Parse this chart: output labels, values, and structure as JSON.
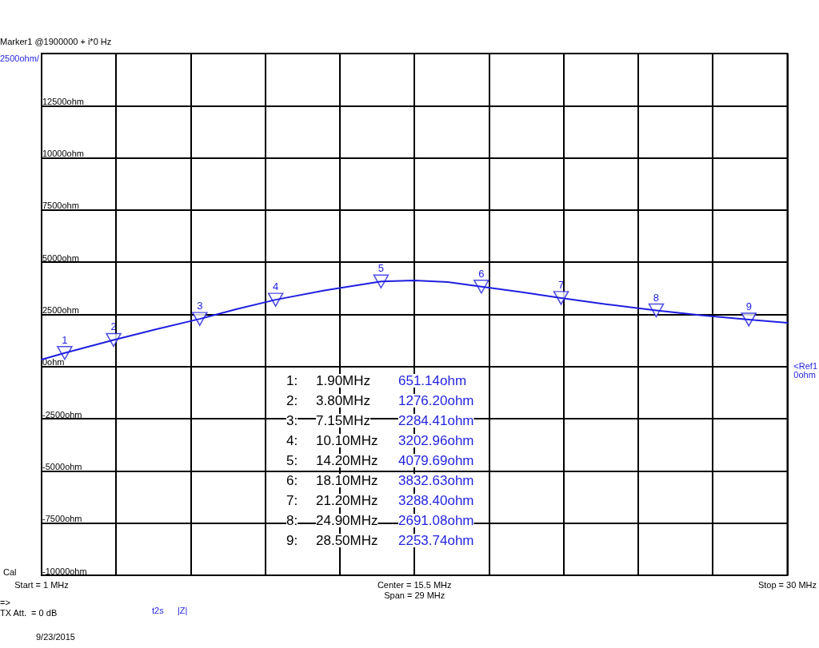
{
  "chart_data": {
    "type": "line",
    "x": [
      1,
      1.9,
      3.8,
      5.5,
      7.15,
      8.6,
      10.1,
      12,
      14.2,
      15.5,
      16.8,
      18.1,
      19.7,
      21.2,
      23,
      24.9,
      26.7,
      28.5,
      30
    ],
    "series": [
      {
        "marker": "none",
        "color": "#1f1fe0",
        "values": [
          340,
          651,
          1276,
          1800,
          2284,
          2760,
          3203,
          3650,
          4080,
          4130,
          4050,
          3833,
          3560,
          3288,
          2980,
          2691,
          2450,
          2254,
          2100
        ]
      },
      {
        "type": "scatter",
        "marker": "triangle",
        "color": "#1f1fe0",
        "x": [
          1.9,
          3.8,
          7.15,
          10.1,
          14.2,
          18.1,
          21.2,
          24.9,
          28.5
        ],
        "values": [
          651.14,
          1276.2,
          2284.41,
          3202.96,
          4079.69,
          3832.63,
          3288.4,
          2691.08,
          2253.74
        ]
      }
    ],
    "line_style": "solid",
    "grid": true,
    "xlim": [
      1,
      30
    ],
    "xticks": [
      {
        "value": 1,
        "label": "Start = 1 MHz"
      },
      {
        "value": 3.9,
        "label": null
      },
      {
        "value": 6.8,
        "label": null
      },
      {
        "value": 9.7,
        "label": null
      },
      {
        "value": 12.6,
        "label": null
      },
      {
        "value": 15.5,
        "label": "Center = 15.5 MHz\nSpan = 29 MHz"
      },
      {
        "value": 18.4,
        "label": null
      },
      {
        "value": 21.3,
        "label": null
      },
      {
        "value": 24.2,
        "label": null
      },
      {
        "value": 27.1,
        "label": null
      },
      {
        "value": 30,
        "label": "Stop = 30 MHz"
      }
    ],
    "ylim": [
      -10000,
      15000
    ],
    "yticks": [
      {
        "value": -10000,
        "label": "-10000ohm"
      },
      {
        "value": -7500,
        "label": "-7500ohm"
      },
      {
        "value": -5000,
        "label": "-5000ohm"
      },
      {
        "value": -2500,
        "label": "-2500ohm"
      },
      {
        "value": 0,
        "label": "0ohm"
      },
      {
        "value": 2500,
        "label": "2500ohm"
      },
      {
        "value": 5000,
        "label": "5000ohm"
      },
      {
        "value": 7500,
        "label": "7500ohm"
      },
      {
        "value": 10000,
        "label": "10000ohm"
      },
      {
        "value": 12500,
        "label": "12500ohm"
      },
      {
        "value": 15000,
        "label": null
      }
    ],
    "annotations": [
      "2500ohm/",
      "Marker1 @1900000 + i*0 Hz",
      "Cal",
      "=>",
      "TX Att.  = 0 dB",
      "t2s",
      "|Z|",
      "9/23/2015",
      "1:   1.90MHz   651.14ohm",
      "2:   3.80MHz   1276.20ohm",
      "3:   7.15MHz   2284.41ohm",
      "4:   10.10MHz   3202.96ohm",
      "5:   14.20MHz   4079.69ohm",
      "6:   18.10MHz   3832.63ohm",
      "7:   21.20MHz   3288.40ohm",
      "8:   24.90MHz   2691.08ohm",
      "9:   28.50MHz   2253.74ohm",
      "<Ref1\n0ohm",
      {
        "text": "1",
        "x": 1.9,
        "y": 651.14
      },
      {
        "text": "2",
        "x": 3.8,
        "y": 1276.2
      },
      {
        "text": "3",
        "x": 7.15,
        "y": 2284.41
      },
      {
        "text": "4",
        "x": 10.1,
        "y": 3202.96
      },
      {
        "text": "5",
        "x": 14.2,
        "y": 4079.69
      },
      {
        "text": "6",
        "x": 18.1,
        "y": 3832.63
      },
      {
        "text": "7",
        "x": 21.2,
        "y": 3288.4
      },
      {
        "text": "8",
        "x": 24.9,
        "y": 2691.08
      },
      {
        "text": "9",
        "x": 28.5,
        "y": 2253.74
      }
    ]
  }
}
